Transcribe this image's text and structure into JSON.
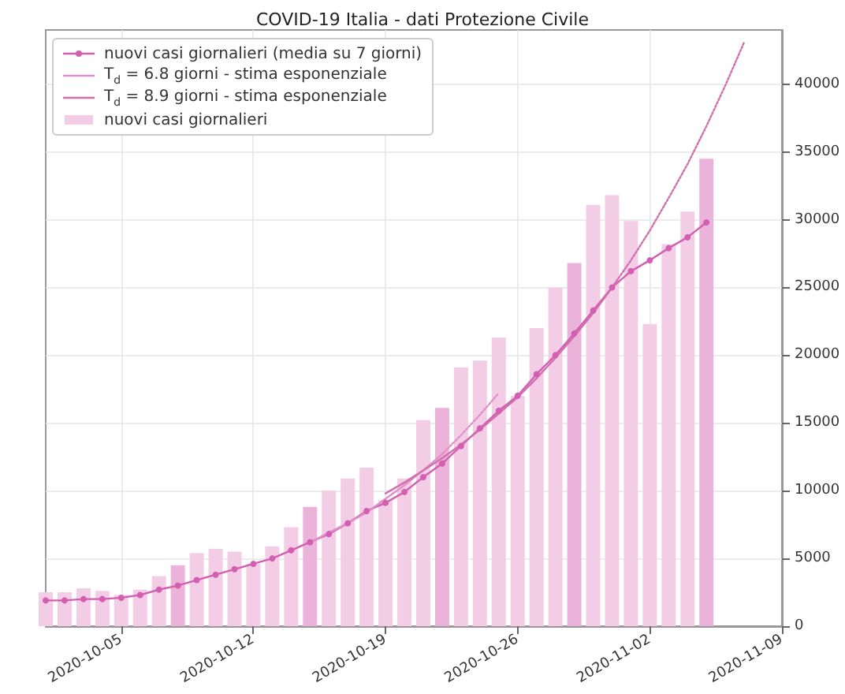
{
  "chart_data": {
    "type": "bar",
    "title": "COVID-19 Italia - dati Protezione Civile",
    "x": [
      "2020-10-01",
      "2020-10-02",
      "2020-10-03",
      "2020-10-04",
      "2020-10-05",
      "2020-10-06",
      "2020-10-07",
      "2020-10-08",
      "2020-10-09",
      "2020-10-10",
      "2020-10-11",
      "2020-10-12",
      "2020-10-13",
      "2020-10-14",
      "2020-10-15",
      "2020-10-16",
      "2020-10-17",
      "2020-10-18",
      "2020-10-19",
      "2020-10-20",
      "2020-10-21",
      "2020-10-22",
      "2020-10-23",
      "2020-10-24",
      "2020-10-25",
      "2020-10-26",
      "2020-10-27",
      "2020-10-28",
      "2020-10-29",
      "2020-10-30",
      "2020-10-31",
      "2020-11-01",
      "2020-11-02",
      "2020-11-03",
      "2020-11-04",
      "2020-11-05"
    ],
    "series": [
      {
        "name": "nuovi casi giornalieri (media su 7 giorni)",
        "type": "line",
        "color": "#d35fb0",
        "marker": "circle",
        "line_style": "solid",
        "values": [
          1900,
          1900,
          2000,
          2000,
          2100,
          2300,
          2700,
          3000,
          3400,
          3800,
          4200,
          4600,
          5000,
          5600,
          6200,
          6800,
          7600,
          8500,
          9100,
          9900,
          11000,
          12000,
          13300,
          14600,
          15900,
          17000,
          18600,
          20000,
          21600,
          23300,
          25000,
          26200,
          27000,
          27900,
          28700,
          29800
        ]
      },
      {
        "name": "T$_{d}$ = 6.8 giorni - stima esponenziale",
        "type": "line",
        "color": "#e28fc9",
        "marker": "none",
        "line_style": "solid",
        "x": [
          "2020-10-15",
          "2020-10-16",
          "2020-10-17",
          "2020-10-18",
          "2020-10-19",
          "2020-10-20",
          "2020-10-21",
          "2020-10-22"
        ],
        "values": [
          6200,
          6900,
          7600,
          8400,
          9400,
          10400,
          11500,
          12700
        ]
      },
      {
        "name": "T$_{d}$ = 8.9 giorni - stima esponenziale",
        "type": "line",
        "color": "#cf6fae",
        "marker": "none",
        "line_style": "solid",
        "x": [
          "2020-10-19",
          "2020-10-20",
          "2020-10-21",
          "2020-10-22",
          "2020-10-23",
          "2020-10-24",
          "2020-10-25",
          "2020-10-26",
          "2020-10-27",
          "2020-10-28",
          "2020-10-29",
          "2020-10-30",
          "2020-10-31"
        ],
        "values": [
          9800,
          10600,
          11500,
          12400,
          13400,
          14500,
          15700,
          16900,
          18300,
          19800,
          21400,
          23100,
          25000
        ]
      },
      {
        "name": "nuovi casi giornalieri",
        "color": "#f3cde6",
        "colors": [
          "#f3cde6",
          "#f3cde6",
          "#f3cde6",
          "#f3cde6",
          "#f3cde6",
          "#f3cde6",
          "#f3cde6",
          "#ebb3d9",
          "#f3cde6",
          "#f3cde6",
          "#f3cde6",
          "#f3cde6",
          "#f3cde6",
          "#f3cde6",
          "#ebb3d9",
          "#f3cde6",
          "#f3cde6",
          "#f3cde6",
          "#f3cde6",
          "#f3cde6",
          "#f3cde6",
          "#ebb3d9",
          "#f3cde6",
          "#f3cde6",
          "#f3cde6",
          "#f3cde6",
          "#f3cde6",
          "#f3cde6",
          "#ebb3d9",
          "#f3cde6",
          "#f3cde6",
          "#f3cde6",
          "#f3cde6",
          "#f3cde6",
          "#f3cde6",
          "#ebb3d9"
        ],
        "values": [
          2500,
          2500,
          2800,
          2600,
          2300,
          2700,
          3700,
          4500,
          5400,
          5700,
          5500,
          4600,
          5900,
          7300,
          8800,
          10000,
          10900,
          11700,
          9300,
          10900,
          15200,
          16100,
          19100,
          19600,
          21300,
          17000,
          22000,
          25000,
          26800,
          31100,
          31800,
          29900,
          22300,
          28200,
          30600,
          34500
        ]
      },
      {
        "type": "line",
        "color": "#e28fc9",
        "marker": "none",
        "line_style": "dotted",
        "x": [
          "2020-10-22",
          "2020-10-23",
          "2020-10-24",
          "2020-10-25"
        ],
        "values": [
          12700,
          14100,
          15600,
          17200
        ]
      },
      {
        "type": "line",
        "color": "#cf6fae",
        "marker": "none",
        "line_style": "dotted",
        "x": [
          "2020-10-31",
          "2020-11-01",
          "2020-11-02",
          "2020-11-03",
          "2020-11-04",
          "2020-11-05",
          "2020-11-06",
          "2020-11-07"
        ],
        "values": [
          25000,
          27000,
          29200,
          31600,
          34100,
          36900,
          39900,
          43100
        ]
      }
    ],
    "xlim": [
      "2020-10-01",
      "2020-11-09"
    ],
    "xticks": [
      {
        "value": "2020-10-05",
        "label": "2020-10-05"
      },
      {
        "value": "2020-10-12",
        "label": "2020-10-12"
      },
      {
        "value": "2020-10-19",
        "label": "2020-10-19"
      },
      {
        "value": "2020-10-26",
        "label": "2020-10-26"
      },
      {
        "value": "2020-11-02",
        "label": "2020-11-02"
      },
      {
        "value": "2020-11-09",
        "label": "2020-11-09"
      }
    ],
    "ylim": [
      0,
      44000
    ],
    "yticks": [
      0,
      5000,
      10000,
      15000,
      20000,
      25000,
      30000,
      35000,
      40000
    ],
    "grid": true,
    "legend": "top left"
  }
}
